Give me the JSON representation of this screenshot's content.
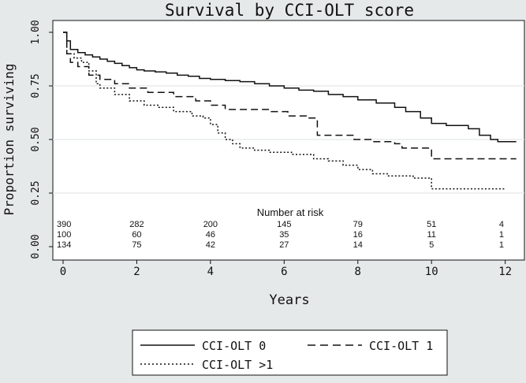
{
  "chart_data": {
    "type": "line",
    "title": "Survival by CCI-OLT score",
    "xlabel": "Years",
    "ylabel": "Proportion surviving",
    "xlim": [
      0,
      12.5
    ],
    "ylim": [
      0,
      1.0
    ],
    "x_ticks": [
      "0",
      "2",
      "4",
      "6",
      "8",
      "10",
      "12"
    ],
    "y_ticks": [
      "0.00",
      "0.25",
      "0.50",
      "0.75",
      "1.00"
    ],
    "grid": "horizontal",
    "legend_position": "bottom",
    "series": [
      {
        "name": "CCI-OLT 0",
        "style": "solid",
        "points": [
          [
            0,
            1.0
          ],
          [
            0.1,
            1.0
          ],
          [
            0.1,
            0.96
          ],
          [
            0.2,
            0.92
          ],
          [
            0.4,
            0.905
          ],
          [
            0.6,
            0.895
          ],
          [
            0.8,
            0.885
          ],
          [
            1.0,
            0.875
          ],
          [
            1.2,
            0.865
          ],
          [
            1.4,
            0.855
          ],
          [
            1.6,
            0.845
          ],
          [
            1.8,
            0.835
          ],
          [
            2.0,
            0.825
          ],
          [
            2.2,
            0.82
          ],
          [
            2.5,
            0.815
          ],
          [
            2.8,
            0.81
          ],
          [
            3.1,
            0.8
          ],
          [
            3.4,
            0.795
          ],
          [
            3.7,
            0.785
          ],
          [
            4.0,
            0.78
          ],
          [
            4.4,
            0.775
          ],
          [
            4.8,
            0.77
          ],
          [
            5.2,
            0.76
          ],
          [
            5.6,
            0.75
          ],
          [
            6.0,
            0.74
          ],
          [
            6.4,
            0.73
          ],
          [
            6.8,
            0.725
          ],
          [
            7.2,
            0.71
          ],
          [
            7.6,
            0.7
          ],
          [
            8.0,
            0.685
          ],
          [
            8.5,
            0.67
          ],
          [
            9.0,
            0.65
          ],
          [
            9.3,
            0.63
          ],
          [
            9.7,
            0.6
          ],
          [
            10.0,
            0.575
          ],
          [
            10.4,
            0.565
          ],
          [
            11.0,
            0.55
          ],
          [
            11.3,
            0.52
          ],
          [
            11.6,
            0.5
          ],
          [
            11.8,
            0.49
          ],
          [
            12.0,
            0.49
          ],
          [
            12.3,
            0.49
          ]
        ]
      },
      {
        "name": "CCI-OLT 1",
        "style": "dashed",
        "points": [
          [
            0,
            1.0
          ],
          [
            0.1,
            1.0
          ],
          [
            0.1,
            0.9
          ],
          [
            0.2,
            0.86
          ],
          [
            0.4,
            0.84
          ],
          [
            0.7,
            0.8
          ],
          [
            1.0,
            0.78
          ],
          [
            1.4,
            0.76
          ],
          [
            1.8,
            0.74
          ],
          [
            2.3,
            0.72
          ],
          [
            3.0,
            0.7
          ],
          [
            3.6,
            0.68
          ],
          [
            4.0,
            0.66
          ],
          [
            4.4,
            0.64
          ],
          [
            5.2,
            0.64
          ],
          [
            5.6,
            0.63
          ],
          [
            6.1,
            0.61
          ],
          [
            6.6,
            0.6
          ],
          [
            6.9,
            0.59
          ],
          [
            6.9,
            0.52
          ],
          [
            7.5,
            0.52
          ],
          [
            7.9,
            0.5
          ],
          [
            8.4,
            0.49
          ],
          [
            9.0,
            0.48
          ],
          [
            9.2,
            0.46
          ],
          [
            9.8,
            0.46
          ],
          [
            10.0,
            0.45
          ],
          [
            10.0,
            0.41
          ],
          [
            12.3,
            0.41
          ]
        ]
      },
      {
        "name": "CCI-OLT >1",
        "style": "dotted",
        "points": [
          [
            0,
            1.0
          ],
          [
            0.1,
            1.0
          ],
          [
            0.1,
            0.9
          ],
          [
            0.3,
            0.88
          ],
          [
            0.5,
            0.86
          ],
          [
            0.7,
            0.82
          ],
          [
            0.9,
            0.76
          ],
          [
            1.0,
            0.74
          ],
          [
            1.4,
            0.71
          ],
          [
            1.8,
            0.68
          ],
          [
            2.2,
            0.66
          ],
          [
            2.6,
            0.65
          ],
          [
            3.0,
            0.63
          ],
          [
            3.5,
            0.61
          ],
          [
            3.8,
            0.6
          ],
          [
            4.0,
            0.57
          ],
          [
            4.2,
            0.53
          ],
          [
            4.4,
            0.5
          ],
          [
            4.6,
            0.48
          ],
          [
            4.8,
            0.46
          ],
          [
            5.2,
            0.45
          ],
          [
            5.6,
            0.44
          ],
          [
            6.2,
            0.43
          ],
          [
            6.8,
            0.41
          ],
          [
            7.2,
            0.4
          ],
          [
            7.6,
            0.38
          ],
          [
            8.0,
            0.36
          ],
          [
            8.4,
            0.34
          ],
          [
            8.8,
            0.33
          ],
          [
            9.5,
            0.32
          ],
          [
            10.0,
            0.31
          ],
          [
            10.0,
            0.27
          ],
          [
            12.0,
            0.27
          ]
        ]
      }
    ],
    "number_at_risk": {
      "title": "Number at risk",
      "times": [
        "0",
        "2",
        "4",
        "6",
        "8",
        "10",
        "12"
      ],
      "rows": [
        [
          "390",
          "282",
          "200",
          "145",
          "79",
          "51",
          "4"
        ],
        [
          "100",
          "60",
          "46",
          "35",
          "16",
          "11",
          "1"
        ],
        [
          "134",
          "75",
          "42",
          "27",
          "14",
          "5",
          "1"
        ]
      ]
    },
    "legend": [
      "CCI-OLT 0",
      "CCI-OLT 1",
      "CCI-OLT >1"
    ]
  }
}
